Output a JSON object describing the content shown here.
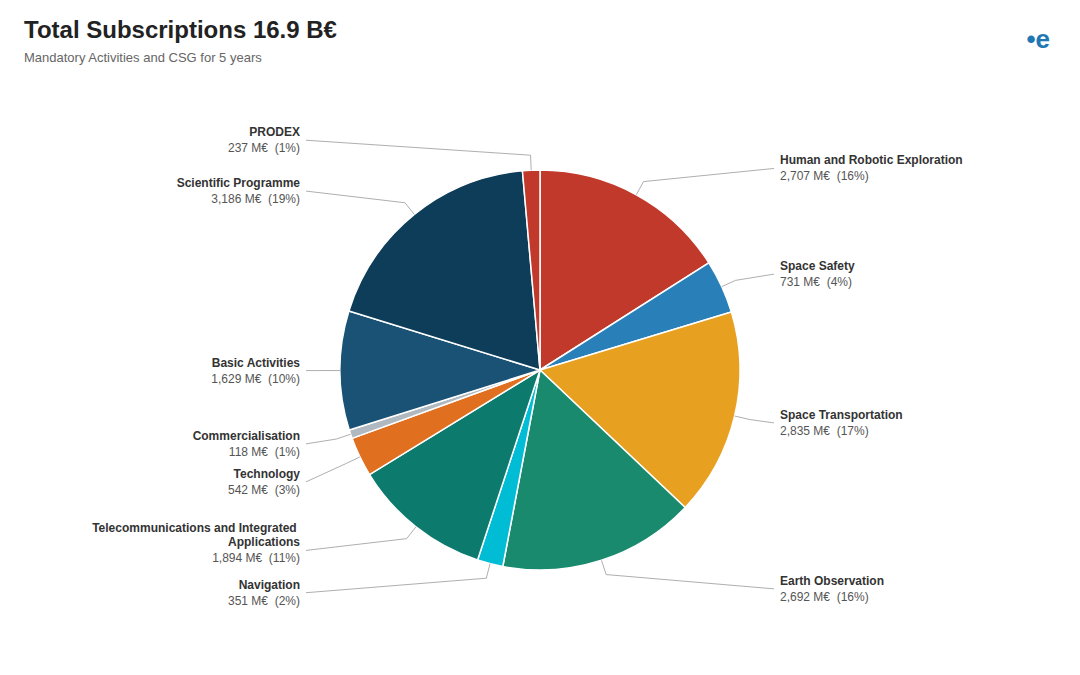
{
  "chart_data": {
    "type": "pie",
    "title": "Total Subscriptions 16.9 B€",
    "subtitle": "Mandatory Activities and CSG for 5 years",
    "annotations": [
      "•e"
    ],
    "categories": [
      "Human and Robotic Exploration",
      "Space Safety",
      "Space Transportation",
      "Earth Observation",
      "Navigation",
      "Telecommunications and Integrated Applications",
      "Technology",
      "Commercialisation",
      "Basic Activities",
      "Scientific Programme",
      "PRODEX"
    ],
    "values": [
      2707,
      731,
      2835,
      2692,
      351,
      1894,
      542,
      118,
      1629,
      3186,
      237
    ],
    "value_labels": [
      "2,707 M€  (16%)",
      "731 M€  (4%)",
      "2,835 M€  (17%)",
      "2,692 M€  (16%)",
      "351 M€  (2%)",
      "1,894 M€  (11%)",
      "542 M€  (3%)",
      "118 M€  (1%)",
      "1,629 M€  (10%)",
      "3,186 M€  (19%)",
      "237 M€  (1%)"
    ],
    "colors": [
      "#c0392b",
      "#2980b9",
      "#e8a020",
      "#1a8a6e",
      "#00bcd4",
      "#0d7a6e",
      "#e07020",
      "#b0b8c0",
      "#1a5276",
      "#0e3d5a",
      "#c0392b"
    ],
    "data_labels": true
  }
}
